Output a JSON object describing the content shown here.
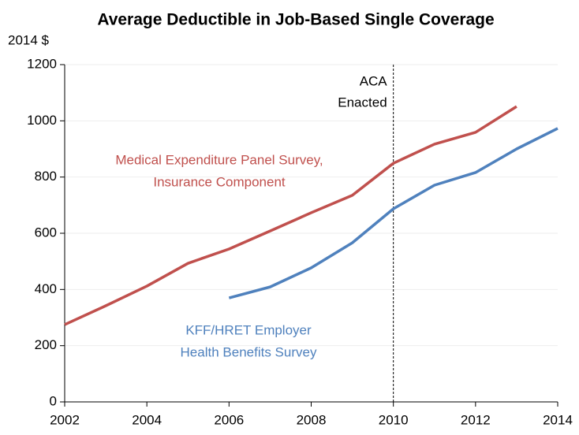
{
  "chart_data": {
    "type": "line",
    "title": "Average Deductible in Job-Based Single Coverage",
    "ylabel": "2014 $",
    "x": [
      2002,
      2003,
      2004,
      2005,
      2006,
      2007,
      2008,
      2009,
      2010,
      2011,
      2012,
      2013,
      2014
    ],
    "series": [
      {
        "name": [
          "Medical Expenditure Panel Survey,",
          "Insurance Component"
        ],
        "color": "#c0504d",
        "values": [
          275,
          342,
          412,
          493,
          544,
          608,
          673,
          735,
          849,
          917,
          959,
          1051,
          null
        ]
      },
      {
        "name": [
          "KFF/HRET Employer",
          "Health Benefits Survey"
        ],
        "color": "#4f81bd",
        "values": [
          null,
          null,
          null,
          null,
          370,
          409,
          477,
          566,
          687,
          771,
          816,
          900,
          973
        ]
      }
    ],
    "annotations": [
      {
        "text": [
          "ACA",
          "Enacted"
        ],
        "x": 2010
      }
    ],
    "xlim": [
      2002,
      2014
    ],
    "xticks": [
      2002,
      2004,
      2006,
      2008,
      2010,
      2012,
      2014
    ],
    "ylim": [
      0,
      1200
    ],
    "yticks": [
      0,
      200,
      400,
      600,
      800,
      1000,
      1200
    ],
    "grid": true
  }
}
